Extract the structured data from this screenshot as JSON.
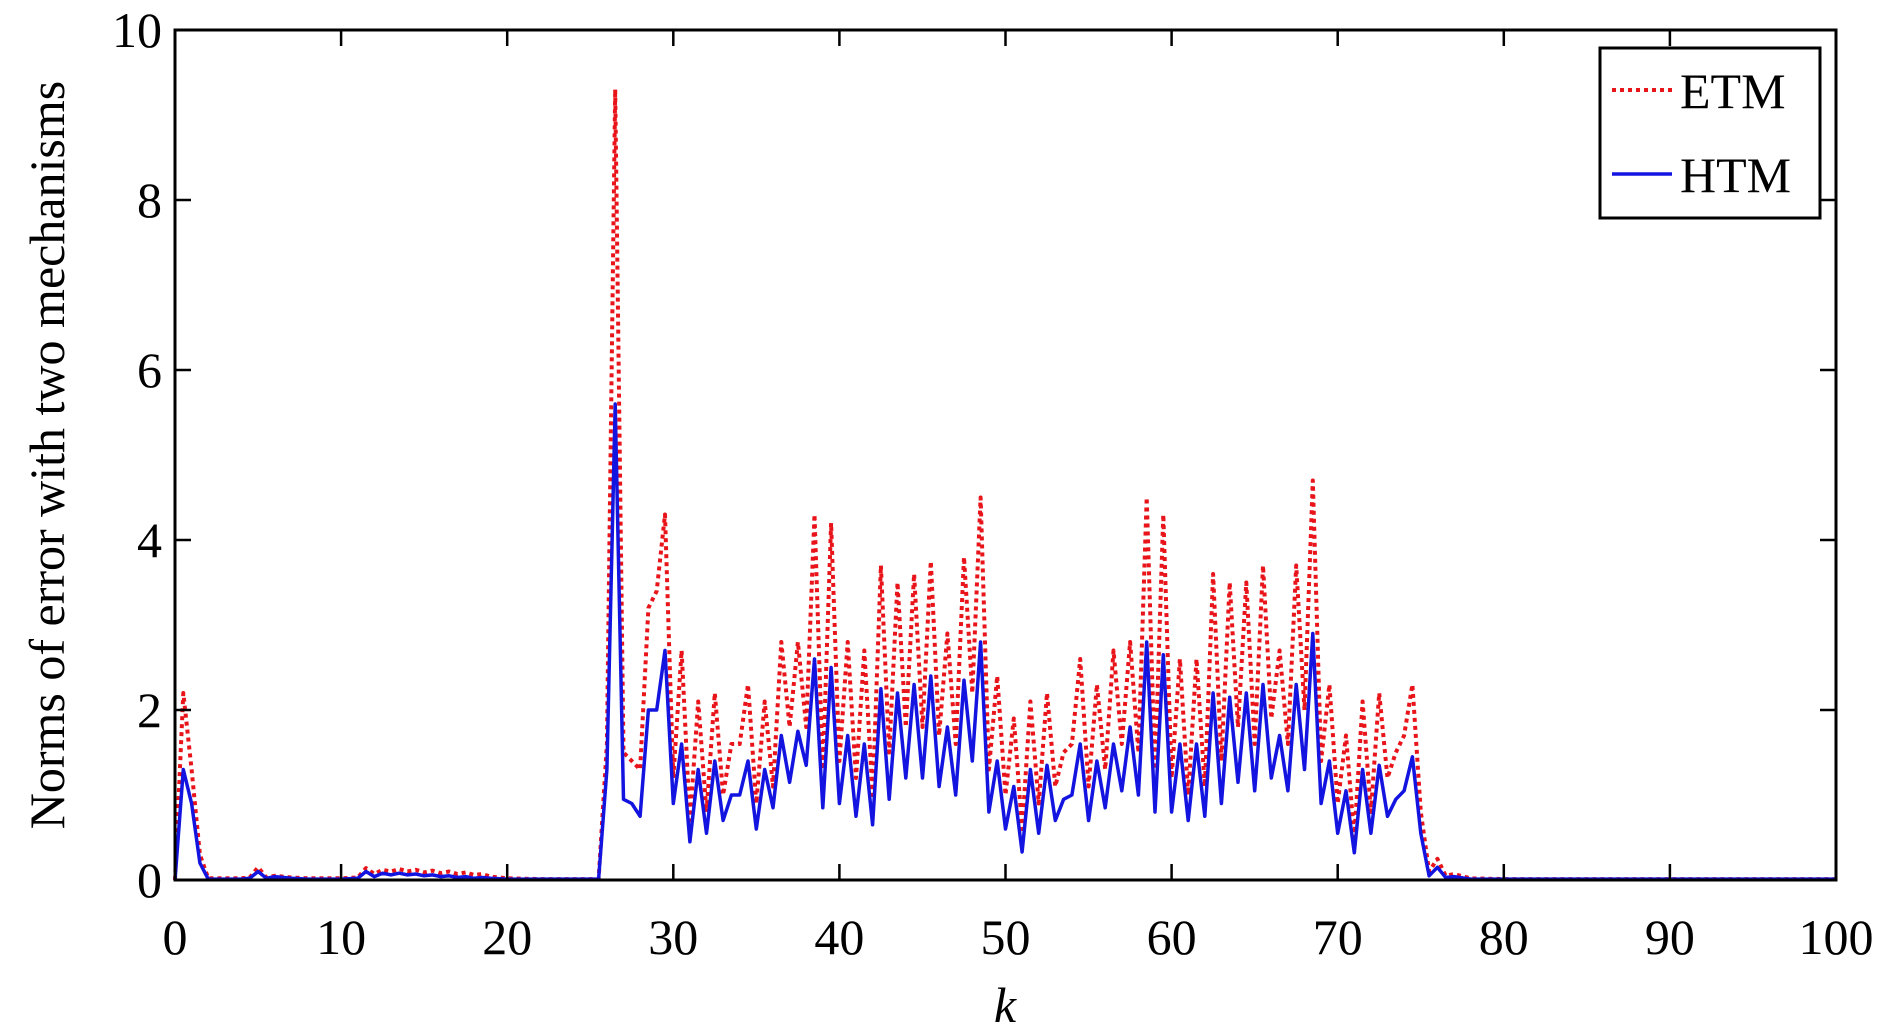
{
  "chart_data": {
    "type": "line",
    "xlabel": "k",
    "ylabel": "Norms of error with two mechanisms",
    "xlim": [
      0,
      100
    ],
    "ylim": [
      0,
      10
    ],
    "x_ticks": [
      0,
      10,
      20,
      30,
      40,
      50,
      60,
      70,
      80,
      90,
      100
    ],
    "y_ticks": [
      0,
      2,
      4,
      6,
      8,
      10
    ],
    "grid": false,
    "legend_position": "top-right",
    "series": [
      {
        "name": "ETM",
        "color": "#e8141a",
        "line_style": "dotted",
        "points": [
          [
            0,
            0
          ],
          [
            0.5,
            2.2
          ],
          [
            1,
            1.3
          ],
          [
            1.5,
            0.3
          ],
          [
            2,
            0.02
          ],
          [
            3,
            0.02
          ],
          [
            4,
            0.02
          ],
          [
            4.5,
            0.03
          ],
          [
            5,
            0.15
          ],
          [
            5.5,
            0.03
          ],
          [
            6,
            0.05
          ],
          [
            7,
            0.03
          ],
          [
            8,
            0.02
          ],
          [
            9,
            0.02
          ],
          [
            10,
            0.02
          ],
          [
            11,
            0.03
          ],
          [
            11.5,
            0.14
          ],
          [
            12,
            0.07
          ],
          [
            12.5,
            0.12
          ],
          [
            13,
            0.1
          ],
          [
            13.5,
            0.13
          ],
          [
            14,
            0.1
          ],
          [
            14.5,
            0.12
          ],
          [
            15,
            0.09
          ],
          [
            15.5,
            0.11
          ],
          [
            16,
            0.08
          ],
          [
            16.5,
            0.1
          ],
          [
            17,
            0.07
          ],
          [
            17.5,
            0.09
          ],
          [
            18,
            0.06
          ],
          [
            18.5,
            0.07
          ],
          [
            19,
            0.04
          ],
          [
            20,
            0.02
          ],
          [
            22,
            0.01
          ],
          [
            25.5,
            0.01
          ],
          [
            26,
            1.6
          ],
          [
            26.5,
            9.3
          ],
          [
            27,
            1.5
          ],
          [
            27.5,
            1.4
          ],
          [
            28,
            1.3
          ],
          [
            28.5,
            3.2
          ],
          [
            29,
            3.4
          ],
          [
            29.5,
            4.3
          ],
          [
            30,
            1.2
          ],
          [
            30.5,
            2.7
          ],
          [
            31,
            0.7
          ],
          [
            31.5,
            2.1
          ],
          [
            32,
            0.8
          ],
          [
            32.5,
            2.2
          ],
          [
            33,
            1.0
          ],
          [
            33.5,
            1.6
          ],
          [
            34,
            1.6
          ],
          [
            34.5,
            2.3
          ],
          [
            35,
            0.9
          ],
          [
            35.5,
            2.1
          ],
          [
            36,
            1.1
          ],
          [
            36.5,
            2.8
          ],
          [
            37,
            1.8
          ],
          [
            37.5,
            2.8
          ],
          [
            38,
            1.8
          ],
          [
            38.5,
            4.3
          ],
          [
            39,
            1.3
          ],
          [
            39.5,
            4.2
          ],
          [
            40,
            1.4
          ],
          [
            40.5,
            2.8
          ],
          [
            41,
            1.2
          ],
          [
            41.5,
            2.7
          ],
          [
            42,
            1.0
          ],
          [
            42.5,
            3.7
          ],
          [
            43,
            1.5
          ],
          [
            43.5,
            3.5
          ],
          [
            44,
            1.8
          ],
          [
            44.5,
            3.6
          ],
          [
            45,
            1.8
          ],
          [
            45.5,
            3.75
          ],
          [
            46,
            1.7
          ],
          [
            46.5,
            2.9
          ],
          [
            47,
            1.6
          ],
          [
            47.5,
            3.8
          ],
          [
            48,
            2.2
          ],
          [
            48.5,
            4.5
          ],
          [
            49,
            1.3
          ],
          [
            49.5,
            2.4
          ],
          [
            50,
            1.0
          ],
          [
            50.5,
            1.9
          ],
          [
            51,
            0.6
          ],
          [
            51.5,
            2.1
          ],
          [
            52,
            0.9
          ],
          [
            52.5,
            2.2
          ],
          [
            53,
            1.1
          ],
          [
            53.5,
            1.5
          ],
          [
            54,
            1.6
          ],
          [
            54.5,
            2.6
          ],
          [
            55,
            1.1
          ],
          [
            55.5,
            2.3
          ],
          [
            56,
            1.3
          ],
          [
            56.5,
            2.7
          ],
          [
            57,
            1.6
          ],
          [
            57.5,
            2.8
          ],
          [
            58,
            1.5
          ],
          [
            58.5,
            4.5
          ],
          [
            59,
            1.3
          ],
          [
            59.5,
            4.3
          ],
          [
            60,
            1.2
          ],
          [
            60.5,
            2.6
          ],
          [
            61,
            1.0
          ],
          [
            61.5,
            2.6
          ],
          [
            62,
            1.1
          ],
          [
            62.5,
            3.6
          ],
          [
            63,
            1.4
          ],
          [
            63.5,
            3.5
          ],
          [
            64,
            1.8
          ],
          [
            64.5,
            3.5
          ],
          [
            65,
            1.6
          ],
          [
            65.5,
            3.7
          ],
          [
            66,
            1.9
          ],
          [
            66.5,
            2.7
          ],
          [
            67,
            1.6
          ],
          [
            67.5,
            3.7
          ],
          [
            68,
            2.0
          ],
          [
            68.5,
            4.7
          ],
          [
            69,
            1.4
          ],
          [
            69.5,
            2.3
          ],
          [
            70,
            0.9
          ],
          [
            70.5,
            1.7
          ],
          [
            71,
            0.5
          ],
          [
            71.5,
            2.1
          ],
          [
            72,
            0.8
          ],
          [
            72.5,
            2.2
          ],
          [
            73,
            1.2
          ],
          [
            73.5,
            1.5
          ],
          [
            74,
            1.7
          ],
          [
            74.5,
            2.3
          ],
          [
            75,
            0.8
          ],
          [
            75.5,
            0.1
          ],
          [
            76,
            0.25
          ],
          [
            76.5,
            0.05
          ],
          [
            77,
            0.07
          ],
          [
            78,
            0.02
          ],
          [
            80,
            0.01
          ],
          [
            100,
            0.01
          ]
        ]
      },
      {
        "name": "HTM",
        "color": "#1414e0",
        "line_style": "solid",
        "points": [
          [
            0,
            0
          ],
          [
            0.5,
            1.3
          ],
          [
            1,
            0.9
          ],
          [
            1.5,
            0.2
          ],
          [
            2,
            0.01
          ],
          [
            3,
            0.01
          ],
          [
            4,
            0.01
          ],
          [
            4.5,
            0.02
          ],
          [
            5,
            0.1
          ],
          [
            5.5,
            0.02
          ],
          [
            6,
            0.04
          ],
          [
            7,
            0.02
          ],
          [
            8,
            0.01
          ],
          [
            9,
            0.01
          ],
          [
            10,
            0.01
          ],
          [
            11,
            0.02
          ],
          [
            11.5,
            0.1
          ],
          [
            12,
            0.04
          ],
          [
            12.5,
            0.08
          ],
          [
            13,
            0.06
          ],
          [
            13.5,
            0.08
          ],
          [
            14,
            0.06
          ],
          [
            14.5,
            0.07
          ],
          [
            15,
            0.05
          ],
          [
            15.5,
            0.06
          ],
          [
            16,
            0.04
          ],
          [
            16.5,
            0.05
          ],
          [
            17,
            0.03
          ],
          [
            17.5,
            0.04
          ],
          [
            18,
            0.02
          ],
          [
            18.5,
            0.03
          ],
          [
            19,
            0.02
          ],
          [
            20,
            0.01
          ],
          [
            22,
            0.01
          ],
          [
            25.5,
            0.01
          ],
          [
            26,
            1.3
          ],
          [
            26.5,
            5.6
          ],
          [
            27,
            0.95
          ],
          [
            27.5,
            0.9
          ],
          [
            28,
            0.75
          ],
          [
            28.5,
            2.0
          ],
          [
            29,
            2.0
          ],
          [
            29.5,
            2.7
          ],
          [
            30,
            0.9
          ],
          [
            30.5,
            1.6
          ],
          [
            31,
            0.45
          ],
          [
            31.5,
            1.3
          ],
          [
            32,
            0.55
          ],
          [
            32.5,
            1.4
          ],
          [
            33,
            0.7
          ],
          [
            33.5,
            1.0
          ],
          [
            34,
            1.0
          ],
          [
            34.5,
            1.4
          ],
          [
            35,
            0.6
          ],
          [
            35.5,
            1.3
          ],
          [
            36,
            0.85
          ],
          [
            36.5,
            1.7
          ],
          [
            37,
            1.15
          ],
          [
            37.5,
            1.75
          ],
          [
            38,
            1.35
          ],
          [
            38.5,
            2.6
          ],
          [
            39,
            0.85
          ],
          [
            39.5,
            2.5
          ],
          [
            40,
            0.9
          ],
          [
            40.5,
            1.7
          ],
          [
            41,
            0.75
          ],
          [
            41.5,
            1.6
          ],
          [
            42,
            0.65
          ],
          [
            42.5,
            2.25
          ],
          [
            43,
            0.95
          ],
          [
            43.5,
            2.2
          ],
          [
            44,
            1.2
          ],
          [
            44.5,
            2.3
          ],
          [
            45,
            1.2
          ],
          [
            45.5,
            2.4
          ],
          [
            46,
            1.1
          ],
          [
            46.5,
            1.8
          ],
          [
            47,
            1.0
          ],
          [
            47.5,
            2.35
          ],
          [
            48,
            1.4
          ],
          [
            48.5,
            2.8
          ],
          [
            49,
            0.8
          ],
          [
            49.5,
            1.4
          ],
          [
            50,
            0.6
          ],
          [
            50.5,
            1.1
          ],
          [
            51,
            0.33
          ],
          [
            51.5,
            1.3
          ],
          [
            52,
            0.55
          ],
          [
            52.5,
            1.35
          ],
          [
            53,
            0.7
          ],
          [
            53.5,
            0.95
          ],
          [
            54,
            1.0
          ],
          [
            54.5,
            1.6
          ],
          [
            55,
            0.7
          ],
          [
            55.5,
            1.4
          ],
          [
            56,
            0.85
          ],
          [
            56.5,
            1.6
          ],
          [
            57,
            1.05
          ],
          [
            57.5,
            1.8
          ],
          [
            58,
            1.0
          ],
          [
            58.5,
            2.8
          ],
          [
            59,
            0.8
          ],
          [
            59.5,
            2.65
          ],
          [
            60,
            0.8
          ],
          [
            60.5,
            1.6
          ],
          [
            61,
            0.7
          ],
          [
            61.5,
            1.6
          ],
          [
            62,
            0.75
          ],
          [
            62.5,
            2.2
          ],
          [
            63,
            0.9
          ],
          [
            63.5,
            2.15
          ],
          [
            64,
            1.15
          ],
          [
            64.5,
            2.2
          ],
          [
            65,
            1.05
          ],
          [
            65.5,
            2.3
          ],
          [
            66,
            1.2
          ],
          [
            66.5,
            1.7
          ],
          [
            67,
            1.05
          ],
          [
            67.5,
            2.3
          ],
          [
            68,
            1.3
          ],
          [
            68.5,
            2.9
          ],
          [
            69,
            0.9
          ],
          [
            69.5,
            1.4
          ],
          [
            70,
            0.55
          ],
          [
            70.5,
            1.05
          ],
          [
            71,
            0.32
          ],
          [
            71.5,
            1.3
          ],
          [
            72,
            0.55
          ],
          [
            72.5,
            1.35
          ],
          [
            73,
            0.75
          ],
          [
            73.5,
            0.95
          ],
          [
            74,
            1.05
          ],
          [
            74.5,
            1.45
          ],
          [
            75,
            0.55
          ],
          [
            75.5,
            0.05
          ],
          [
            76,
            0.15
          ],
          [
            76.5,
            0.03
          ],
          [
            77,
            0.04
          ],
          [
            78,
            0.01
          ],
          [
            80,
            0.01
          ],
          [
            100,
            0.01
          ]
        ]
      }
    ]
  }
}
